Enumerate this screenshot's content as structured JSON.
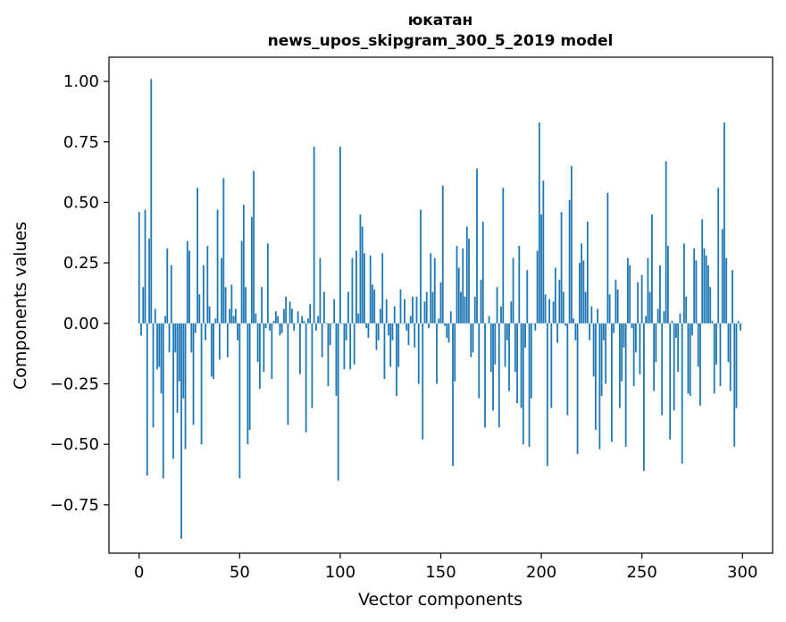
{
  "chart_data": {
    "type": "bar",
    "title": "юкатан",
    "subtitle": "news_upos_skipgram_300_5_2019 model",
    "xlabel": "Vector components",
    "ylabel": "Components values",
    "xlim": [
      -15,
      315
    ],
    "ylim": [
      -0.95,
      1.1
    ],
    "xticks": [
      0,
      50,
      100,
      150,
      200,
      250,
      300
    ],
    "yticks": [
      -0.75,
      -0.5,
      -0.25,
      0.0,
      0.25,
      0.5,
      0.75,
      1.0
    ],
    "ytick_labels": [
      "−0.75",
      "−0.50",
      "−0.25",
      "0.00",
      "0.25",
      "0.50",
      "0.75",
      "1.00"
    ],
    "xtick_labels": [
      "0",
      "50",
      "100",
      "150",
      "200",
      "250",
      "300"
    ],
    "bar_color": "#1f77b4",
    "values": [
      0.46,
      -0.05,
      0.15,
      0.47,
      -0.63,
      0.35,
      1.01,
      -0.43,
      0.06,
      -0.19,
      -0.18,
      -0.29,
      -0.64,
      0.03,
      0.31,
      -0.12,
      0.24,
      -0.56,
      -0.12,
      -0.37,
      -0.24,
      -0.89,
      -0.31,
      -0.52,
      0.34,
      0.3,
      -0.12,
      -0.42,
      -0.04,
      0.56,
      0.12,
      -0.5,
      0.24,
      -0.07,
      0.32,
      0.07,
      -0.22,
      -0.23,
      0.02,
      0.47,
      -0.15,
      0.27,
      0.6,
      0.15,
      -0.14,
      0.06,
      0.16,
      0.03,
      0.06,
      -0.07,
      -0.64,
      0.34,
      0.49,
      0.15,
      -0.5,
      -0.44,
      0.44,
      0.63,
      0.04,
      -0.16,
      -0.27,
      0.15,
      -0.2,
      -0.02,
      0.33,
      -0.03,
      -0.23,
      0.01,
      0.05,
      0.03,
      -0.05,
      -0.04,
      0.06,
      0.11,
      -0.42,
      0.09,
      0.06,
      -0.03,
      0.0,
      0.05,
      -0.21,
      0.03,
      0.01,
      -0.45,
      0.02,
      0.08,
      -0.35,
      0.73,
      -0.03,
      0.03,
      0.27,
      -0.14,
      0.13,
      0.0,
      -0.26,
      -0.09,
      0.0,
      0.1,
      -0.3,
      -0.65,
      0.73,
      0.0,
      -0.19,
      -0.07,
      0.13,
      -0.19,
      0.27,
      -0.17,
      0.3,
      0.04,
      0.45,
      0.4,
      0.29,
      -0.02,
      -0.06,
      0.28,
      0.16,
      0.14,
      -0.11,
      -0.07,
      0.06,
      0.29,
      -0.23,
      0.1,
      -0.05,
      -0.18,
      -0.07,
      0.07,
      -0.3,
      -0.18,
      0.14,
      0.0,
      0.1,
      -0.03,
      -0.09,
      0.03,
      0.11,
      -0.1,
      0.11,
      -0.25,
      0.47,
      -0.48,
      0.09,
      0.13,
      -0.02,
      0.29,
      0.13,
      0.27,
      -0.25,
      0.02,
      0.17,
      0.57,
      -0.01,
      -0.06,
      -0.08,
      0.05,
      -0.59,
      -0.24,
      0.32,
      0.23,
      0.13,
      0.31,
      0.11,
      0.4,
      0.35,
      -0.14,
      -0.12,
      0.11,
      0.64,
      -0.31,
      0.18,
      0.42,
      -0.43,
      0.0,
      0.03,
      -0.2,
      -0.36,
      -0.17,
      0.15,
      -0.43,
      0.07,
      0.56,
      -0.18,
      -0.07,
      -0.28,
      0.09,
      0.27,
      -0.2,
      -0.33,
      0.32,
      -0.35,
      -0.5,
      -0.1,
      0.22,
      -0.51,
      -0.31,
      0.0,
      -0.03,
      0.3,
      0.83,
      0.45,
      0.59,
      0.12,
      -0.59,
      0.1,
      -0.35,
      0.09,
      0.23,
      -0.08,
      0.18,
      0.46,
      0.13,
      -0.01,
      -0.38,
      0.51,
      0.65,
      0.02,
      -0.07,
      -0.54,
      0.25,
      0.33,
      0.26,
      0.13,
      0.42,
      -0.07,
      0.07,
      -0.22,
      -0.44,
      0.06,
      -0.52,
      -0.3,
      -0.07,
      -0.25,
      0.54,
      0.12,
      -0.49,
      -0.04,
      0.18,
      0.14,
      -0.35,
      -0.24,
      -0.1,
      -0.51,
      0.27,
      0.24,
      -0.02,
      -0.26,
      -0.12,
      0.17,
      -0.21,
      0.2,
      -0.61,
      0.03,
      0.27,
      0.13,
      0.45,
      -0.28,
      -0.16,
      0.06,
      0.24,
      -0.38,
      0.05,
      0.67,
      0.32,
      -0.48,
      0.01,
      -0.36,
      -0.06,
      -0.2,
      0.04,
      -0.58,
      0.33,
      0.11,
      -0.29,
      -0.3,
      -0.05,
      0.31,
      0.26,
      -0.18,
      -0.34,
      0.43,
      0.31,
      0.28,
      0.24,
      0.15,
      0.01,
      -0.29,
      -0.17,
      0.56,
      -0.26,
      0.39,
      0.83,
      0.27,
      -0.16,
      -0.28,
      0.22,
      -0.51,
      -0.35,
      0.01,
      -0.03
    ]
  }
}
